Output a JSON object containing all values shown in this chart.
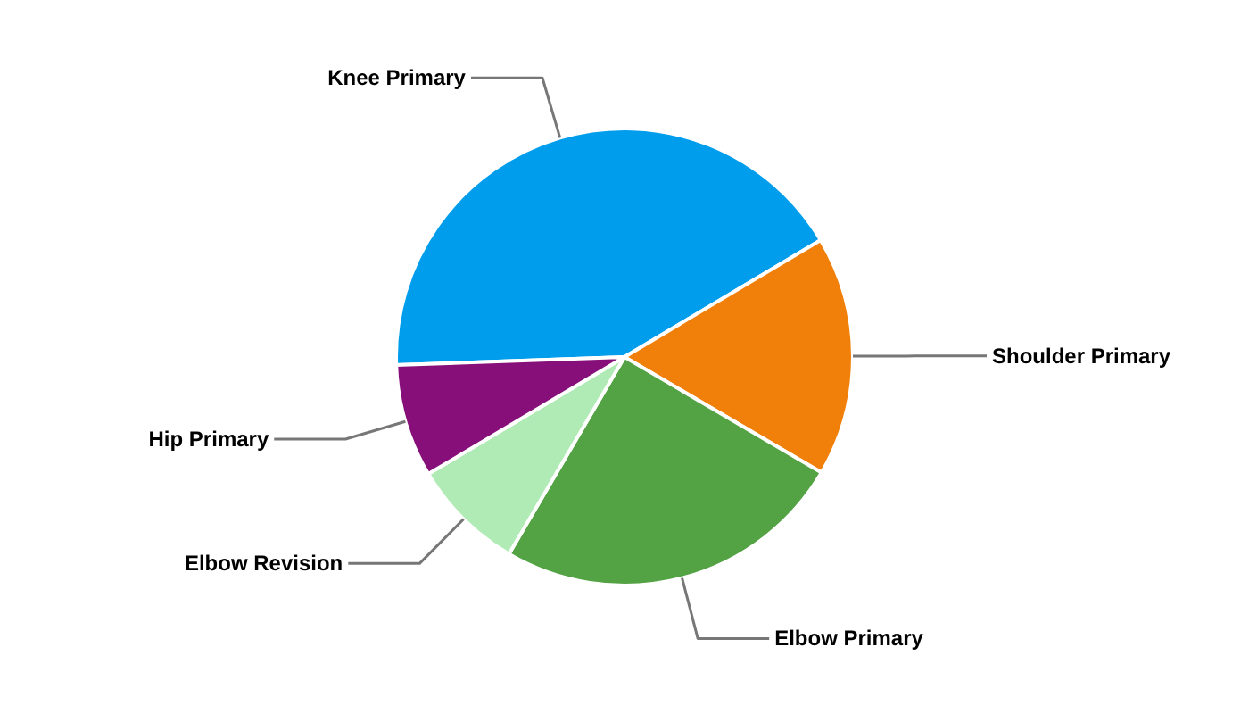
{
  "chart_data": {
    "type": "pie",
    "categories": [
      "Knee Primary",
      "Shoulder Primary",
      "Elbow Primary",
      "Elbow Revision",
      "Hip Primary"
    ],
    "values": [
      42,
      17,
      25,
      8,
      8
    ],
    "colors": [
      "#009ded",
      "#f0800a",
      "#53a244",
      "#b0eab5",
      "#860f79"
    ]
  }
}
